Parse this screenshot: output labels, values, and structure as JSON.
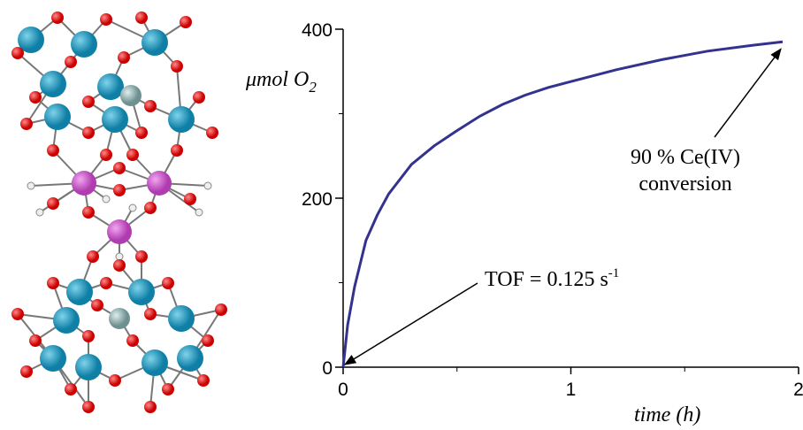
{
  "chart_data": {
    "type": "line",
    "ylabel": "μmol O",
    "ylabel_subscript": "2",
    "xlabel": "time (h)",
    "annotations": [
      {
        "text": "TOF = 0.125 s",
        "superscript": "-1",
        "x": 0,
        "y": 0
      },
      {
        "lines": [
          "90 % Ce(IV)",
          "conversion"
        ],
        "x": 1.93,
        "y": 385
      }
    ],
    "xlim": [
      0,
      2
    ],
    "xticks": [
      0,
      1,
      2
    ],
    "xminorticks": [
      0.5,
      1.5
    ],
    "ylim": [
      0,
      400
    ],
    "yticks": [
      0,
      200,
      400
    ],
    "yminorticks": [
      100,
      300
    ],
    "series": [
      {
        "color": "#33338f",
        "x": [
          0,
          0.02,
          0.05,
          0.1,
          0.15,
          0.2,
          0.3,
          0.4,
          0.5,
          0.6,
          0.7,
          0.8,
          0.9,
          1.0,
          1.2,
          1.4,
          1.6,
          1.8,
          1.93
        ],
        "values": [
          0,
          50,
          95,
          150,
          180,
          205,
          240,
          262,
          280,
          297,
          311,
          322,
          331,
          338,
          352,
          364,
          374,
          381,
          385
        ]
      }
    ]
  }
}
